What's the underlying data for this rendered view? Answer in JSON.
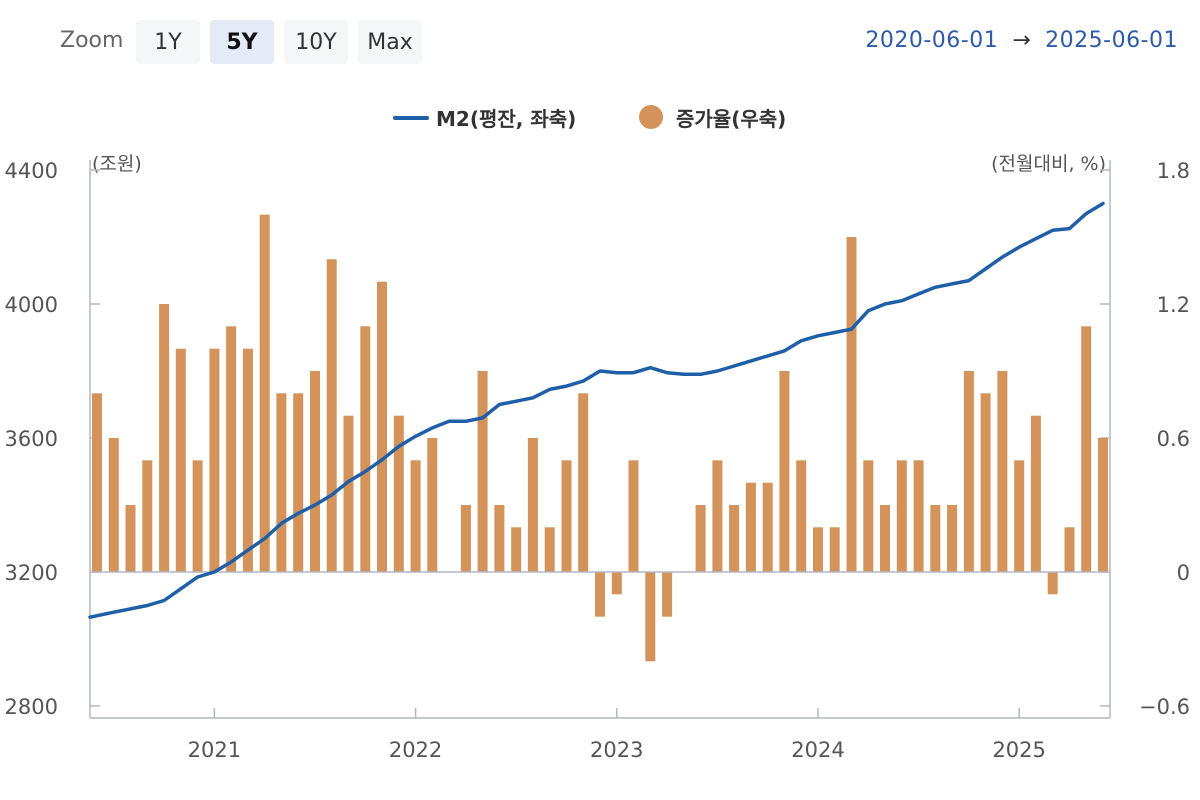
{
  "toolbar": {
    "zoom_label": "Zoom",
    "buttons": [
      "1Y",
      "5Y",
      "10Y",
      "Max"
    ],
    "active": "5Y",
    "range_start": "2020-06-01",
    "range_arrow": "→",
    "range_end": "2025-06-01"
  },
  "colors": {
    "line": "#1f5fa8",
    "bar": "#d4935a",
    "axis": "#b0b7c3",
    "text": "#555555"
  },
  "chart_data": {
    "type": "bar+line",
    "legend_position": "top-center",
    "grid": false,
    "x_tick_labels": [
      "2021",
      "2022",
      "2023",
      "2024",
      "2025"
    ],
    "y_left": {
      "unit_label": "(조원)",
      "ticks": [
        "4400",
        "4000",
        "3600",
        "3200",
        "2800"
      ],
      "range": [
        2800,
        4400
      ]
    },
    "y_right": {
      "unit_label": "(전월대비, %)",
      "ticks": [
        "1.8",
        "1.2",
        "0.6",
        "0",
        "−0.6"
      ],
      "range": [
        -0.6,
        1.8
      ]
    },
    "x": [
      "2020-06",
      "2020-07",
      "2020-08",
      "2020-09",
      "2020-10",
      "2020-11",
      "2020-12",
      "2021-01",
      "2021-02",
      "2021-03",
      "2021-04",
      "2021-05",
      "2021-06",
      "2021-07",
      "2021-08",
      "2021-09",
      "2021-10",
      "2021-11",
      "2021-12",
      "2022-01",
      "2022-02",
      "2022-03",
      "2022-04",
      "2022-05",
      "2022-06",
      "2022-07",
      "2022-08",
      "2022-09",
      "2022-10",
      "2022-11",
      "2022-12",
      "2023-01",
      "2023-02",
      "2023-03",
      "2023-04",
      "2023-05",
      "2023-06",
      "2023-07",
      "2023-08",
      "2023-09",
      "2023-10",
      "2023-11",
      "2023-12",
      "2024-01",
      "2024-02",
      "2024-03",
      "2024-04",
      "2024-05",
      "2024-06",
      "2024-07",
      "2024-08",
      "2024-09",
      "2024-10",
      "2024-11",
      "2024-12",
      "2025-01",
      "2025-02",
      "2025-03",
      "2025-04",
      "2025-05",
      "2025-06"
    ],
    "series": [
      {
        "name": "M2(평잔, 좌축)",
        "type": "line",
        "axis": "left",
        "values": [
          3065,
          3080,
          3090,
          3100,
          3115,
          3150,
          3185,
          3200,
          3230,
          3265,
          3300,
          3345,
          3375,
          3400,
          3430,
          3470,
          3500,
          3535,
          3575,
          3605,
          3630,
          3650,
          3650,
          3660,
          3700,
          3710,
          3720,
          3745,
          3755,
          3770,
          3800,
          3795,
          3795,
          3810,
          3795,
          3790,
          3790,
          3800,
          3815,
          3830,
          3845,
          3860,
          3890,
          3905,
          3915,
          3925,
          3980,
          4000,
          4010,
          4030,
          4050,
          4060,
          4070,
          4105,
          4140,
          4170,
          4195,
          4220,
          4225,
          4270,
          4300
        ]
      },
      {
        "name": "증가율(우축)",
        "type": "bar",
        "axis": "right",
        "values": [
          0.8,
          0.6,
          0.3,
          0.5,
          1.2,
          1.0,
          0.5,
          1.0,
          1.1,
          1.0,
          1.6,
          0.8,
          0.8,
          0.9,
          1.4,
          0.7,
          1.1,
          1.3,
          0.7,
          0.5,
          0.6,
          0.0,
          0.3,
          0.9,
          0.3,
          0.2,
          0.6,
          0.2,
          0.5,
          0.8,
          -0.2,
          -0.1,
          0.5,
          -0.4,
          -0.2,
          0.0,
          0.3,
          0.5,
          0.3,
          0.4,
          0.4,
          0.9,
          0.5,
          0.2,
          0.2,
          1.5,
          0.5,
          0.3,
          0.5,
          0.5,
          0.3,
          0.3,
          0.9,
          0.8,
          0.9,
          0.5,
          0.7,
          -0.1,
          0.2,
          1.1,
          0.6
        ]
      }
    ]
  }
}
